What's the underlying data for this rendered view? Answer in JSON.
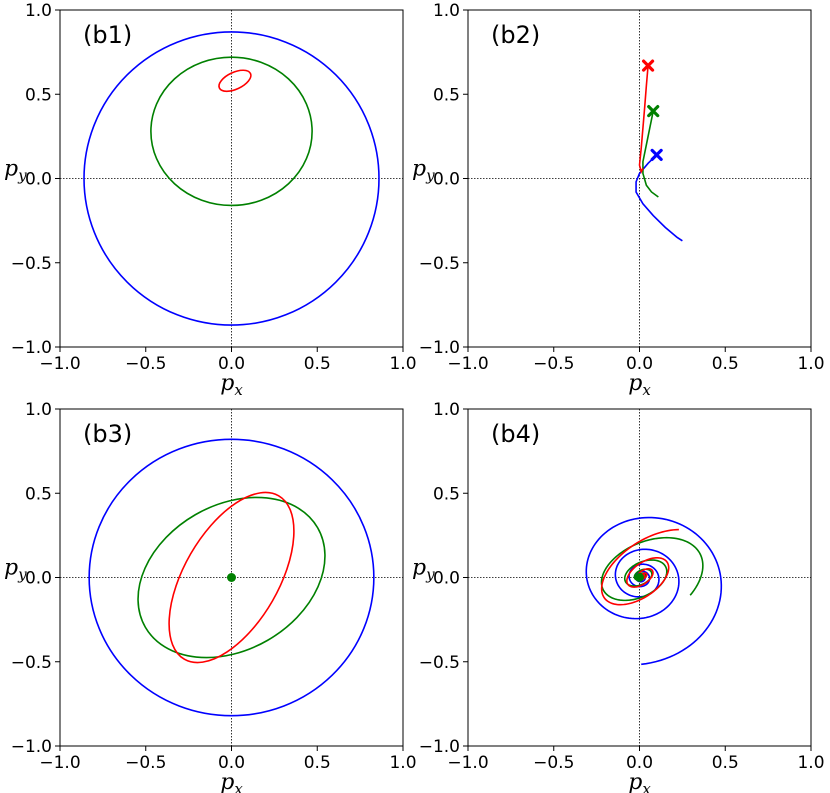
{
  "figure": {
    "xlabel": "p",
    "xlabel_sub": "x",
    "ylabel": "p",
    "ylabel_sub": "y",
    "tick_values": [
      -1.0,
      -0.5,
      0.0,
      0.5,
      1.0
    ],
    "tick_labels": [
      "−1.0",
      "−0.5",
      "0.0",
      "0.5",
      "1.0"
    ]
  },
  "colors": {
    "blue": "#0000ff",
    "green": "#008000",
    "red": "#ff0000"
  },
  "chart_data": [
    {
      "type": "line",
      "panel_label": "(b1)",
      "xlim": [
        -1,
        1
      ],
      "ylim": [
        -1,
        1
      ],
      "reference_lines": {
        "x": 0,
        "y": 0
      },
      "series": [
        {
          "name": "blue",
          "color": "#0000ff",
          "kind": "ellipse",
          "cx": 0.0,
          "cy": 0.0,
          "rx": 0.86,
          "ry": 0.87,
          "angle_deg": 0
        },
        {
          "name": "green",
          "color": "#008000",
          "kind": "ellipse",
          "cx": 0.0,
          "cy": 0.28,
          "rx": 0.47,
          "ry": 0.44,
          "angle_deg": 0
        },
        {
          "name": "red",
          "color": "#ff0000",
          "kind": "ellipse",
          "cx": 0.02,
          "cy": 0.58,
          "rx": 0.1,
          "ry": 0.05,
          "angle_deg": 25
        }
      ]
    },
    {
      "type": "line",
      "panel_label": "(b2)",
      "xlim": [
        -1,
        1
      ],
      "ylim": [
        -1,
        1
      ],
      "reference_lines": {
        "x": 0,
        "y": 0
      },
      "series": [
        {
          "name": "blue",
          "color": "#0000ff",
          "kind": "path",
          "marker": "x",
          "points": [
            [
              0.1,
              0.14
            ],
            [
              0.05,
              0.09
            ],
            [
              0.0,
              0.03
            ],
            [
              -0.02,
              -0.02
            ],
            [
              -0.02,
              -0.08
            ],
            [
              0.02,
              -0.15
            ],
            [
              0.08,
              -0.22
            ],
            [
              0.15,
              -0.29
            ],
            [
              0.22,
              -0.35
            ],
            [
              0.25,
              -0.37
            ]
          ]
        },
        {
          "name": "green",
          "color": "#008000",
          "kind": "path",
          "marker": "x",
          "points": [
            [
              0.08,
              0.4
            ],
            [
              0.06,
              0.3
            ],
            [
              0.04,
              0.2
            ],
            [
              0.02,
              0.1
            ],
            [
              0.02,
              0.03
            ],
            [
              0.04,
              -0.04
            ],
            [
              0.07,
              -0.08
            ],
            [
              0.11,
              -0.11
            ]
          ]
        },
        {
          "name": "red",
          "color": "#ff0000",
          "kind": "path",
          "marker": "x",
          "points": [
            [
              0.05,
              0.67
            ],
            [
              0.04,
              0.55
            ],
            [
              0.03,
              0.42
            ],
            [
              0.02,
              0.3
            ],
            [
              0.01,
              0.18
            ],
            [
              0.0,
              0.08
            ],
            [
              0.01,
              0.04
            ],
            [
              0.02,
              0.06
            ]
          ]
        }
      ]
    },
    {
      "type": "line",
      "panel_label": "(b3)",
      "xlim": [
        -1,
        1
      ],
      "ylim": [
        -1,
        1
      ],
      "reference_lines": {
        "x": 0,
        "y": 0
      },
      "series": [
        {
          "name": "blue",
          "color": "#0000ff",
          "kind": "ellipse",
          "cx": 0.0,
          "cy": 0.0,
          "rx": 0.83,
          "ry": 0.82,
          "angle_deg": 0
        },
        {
          "name": "green",
          "color": "#008000",
          "kind": "ellipse",
          "cx": 0.0,
          "cy": 0.0,
          "rx": 0.58,
          "ry": 0.43,
          "angle_deg": 30
        },
        {
          "name": "red",
          "color": "#ff0000",
          "kind": "ellipse",
          "cx": 0.0,
          "cy": 0.0,
          "rx": 0.55,
          "ry": 0.28,
          "angle_deg": 60
        },
        {
          "name": "green-center",
          "color": "#008000",
          "kind": "dot",
          "x": 0.0,
          "y": 0.0
        }
      ]
    },
    {
      "type": "line",
      "panel_label": "(b4)",
      "xlim": [
        -1,
        1
      ],
      "ylim": [
        -1,
        1
      ],
      "reference_lines": {
        "x": 0,
        "y": 0
      },
      "series": [
        {
          "name": "blue",
          "color": "#0000ff",
          "kind": "spiral",
          "a0": 0.56,
          "decay": 0.12,
          "turns": 5,
          "phase_deg": 270,
          "cx": 0.01,
          "cy": 0.0,
          "squash": 0.92
        },
        {
          "name": "green",
          "color": "#008000",
          "kind": "spiral",
          "a0": 0.42,
          "decay": 0.14,
          "turns": 5,
          "phase_deg": 300,
          "cx": 0.01,
          "cy": 0.01,
          "squash": 0.62,
          "tilt_deg": 25
        },
        {
          "name": "red",
          "color": "#ff0000",
          "kind": "spiral",
          "a0": 0.38,
          "decay": 0.15,
          "turns": 5,
          "phase_deg": 30,
          "cx": 0.02,
          "cy": 0.01,
          "squash": 0.55,
          "tilt_deg": 35
        },
        {
          "name": "green-center",
          "color": "#008000",
          "kind": "dot",
          "x": 0.0,
          "y": 0.0
        }
      ]
    }
  ]
}
